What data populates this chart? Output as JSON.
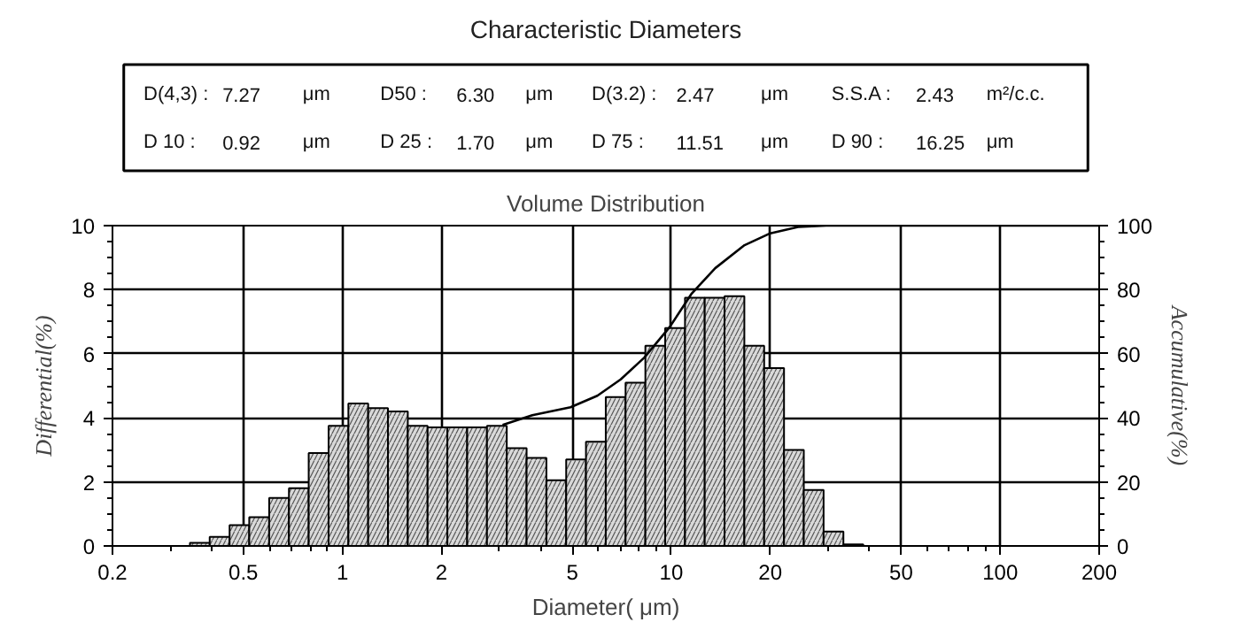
{
  "chart_data": [
    {
      "type": "other",
      "title": "Characteristic Diameters",
      "annotations": [
        "D(4,3) :",
        "7.27",
        "μm",
        "D50 :",
        "6.30",
        "μm",
        "D(3.2) :",
        "2.47",
        "μm",
        "S.S.A :",
        "2.43",
        "m²/c.c.",
        "D 10 :",
        "0.92",
        "μm",
        "D 25 :",
        "1.70",
        "μm",
        "D 75 :",
        "11.51",
        "μm",
        "D 90 :",
        "16.25",
        "μm"
      ]
    },
    {
      "type": "histogram",
      "title": "Volume Distribution",
      "xlabel": "Diameter( μm)",
      "ylabel": "Differential(%)",
      "y2label": "Accumulative(%)",
      "log": "x",
      "xlim": [
        0.2,
        200
      ],
      "xticks": [
        0.2,
        0.5,
        1,
        2,
        5,
        10,
        20,
        50,
        100,
        200
      ],
      "ylim": [
        0,
        10
      ],
      "yticks": [
        0,
        2,
        4,
        6,
        8,
        10
      ],
      "y2lim": [
        0,
        100
      ],
      "y2ticks": [
        0,
        20,
        40,
        60,
        80,
        100
      ],
      "grid": true,
      "series": [
        {
          "type": "histogram",
          "color": "#d9d9d9",
          "bins": [
            0.344,
            0.395,
            0.454,
            0.521,
            0.599,
            0.688,
            0.79,
            0.908,
            1.043,
            1.198,
            1.376,
            1.581,
            1.816,
            2.086,
            2.396,
            2.752,
            3.161,
            3.632,
            4.172,
            4.792,
            5.504,
            6.322,
            7.262,
            8.342,
            9.582,
            11.01,
            12.64,
            14.52,
            16.68,
            19.16,
            22.02,
            25.29,
            29.05,
            33.37,
            38.33
          ],
          "values": [
            0.1,
            0.28,
            0.65,
            0.9,
            1.5,
            1.8,
            2.9,
            3.75,
            4.45,
            4.3,
            4.2,
            3.75,
            3.7,
            3.7,
            3.7,
            3.75,
            3.05,
            2.75,
            2.05,
            2.7,
            3.25,
            4.65,
            5.1,
            6.25,
            6.8,
            7.75,
            7.75,
            7.8,
            6.25,
            5.55,
            3.0,
            1.75,
            0.45,
            0.05
          ]
        },
        {
          "type": "line",
          "axis": "y2",
          "color": "#000000",
          "x": [
            3.07,
            3.78,
            4.94,
            5.96,
            7.02,
            8.28,
            9.9,
            11.5,
            13.6,
            16.7,
            20,
            24.3,
            29.6,
            200
          ],
          "values": [
            37.8,
            40.8,
            43.3,
            46.9,
            52,
            58.8,
            68.4,
            78.6,
            86.7,
            93.9,
            97.6,
            99.6,
            100,
            100
          ]
        }
      ]
    }
  ]
}
